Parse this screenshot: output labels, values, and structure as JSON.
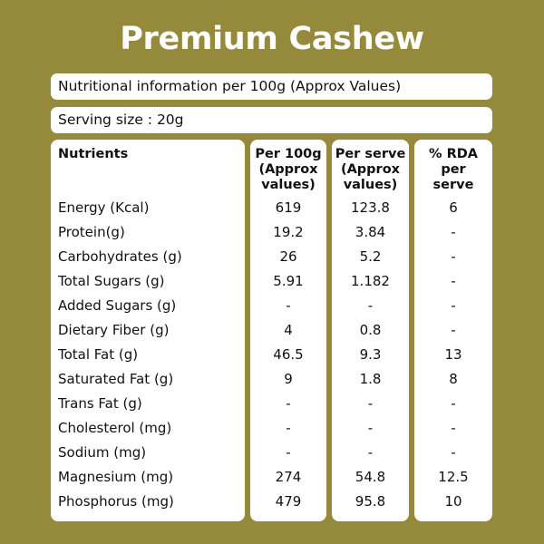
{
  "title": "Premium Cashew",
  "info_text": "Nutritional information per 100g (Approx Values)",
  "serving_text": "Serving size : 20g",
  "table": {
    "headers": [
      [
        "Nutrients"
      ],
      [
        "Per 100g",
        "(Approx",
        "values)"
      ],
      [
        "Per serve",
        "(Approx",
        "values)"
      ],
      [
        "% RDA",
        "per",
        "serve"
      ]
    ],
    "rows": [
      [
        "Energy (Kcal)",
        "619",
        "123.8",
        "6"
      ],
      [
        "Protein(g)",
        "19.2",
        "3.84",
        "-"
      ],
      [
        "Carbohydrates (g)",
        "26",
        "5.2",
        "-"
      ],
      [
        "Total Sugars (g)",
        "5.91",
        "1.182",
        "-"
      ],
      [
        "Added Sugars (g)",
        "-",
        "-",
        "-"
      ],
      [
        "Dietary Fiber (g)",
        "4",
        "0.8",
        "-"
      ],
      [
        "Total Fat (g)",
        "46.5",
        "9.3",
        "13"
      ],
      [
        "Saturated Fat (g)",
        "9",
        "1.8",
        "8"
      ],
      [
        "Trans Fat (g)",
        "-",
        "-",
        "-"
      ],
      [
        "Cholesterol (mg)",
        "-",
        "-",
        "-"
      ],
      [
        "Sodium (mg)",
        "-",
        "-",
        "-"
      ],
      [
        "Magnesium (mg)",
        "274",
        "54.8",
        "12.5"
      ],
      [
        "Phosphorus (mg)",
        "479",
        "95.8",
        "10"
      ]
    ]
  },
  "colors": {
    "background": "#958a3c",
    "panel": "#ffffff",
    "title": "#ffffff"
  }
}
